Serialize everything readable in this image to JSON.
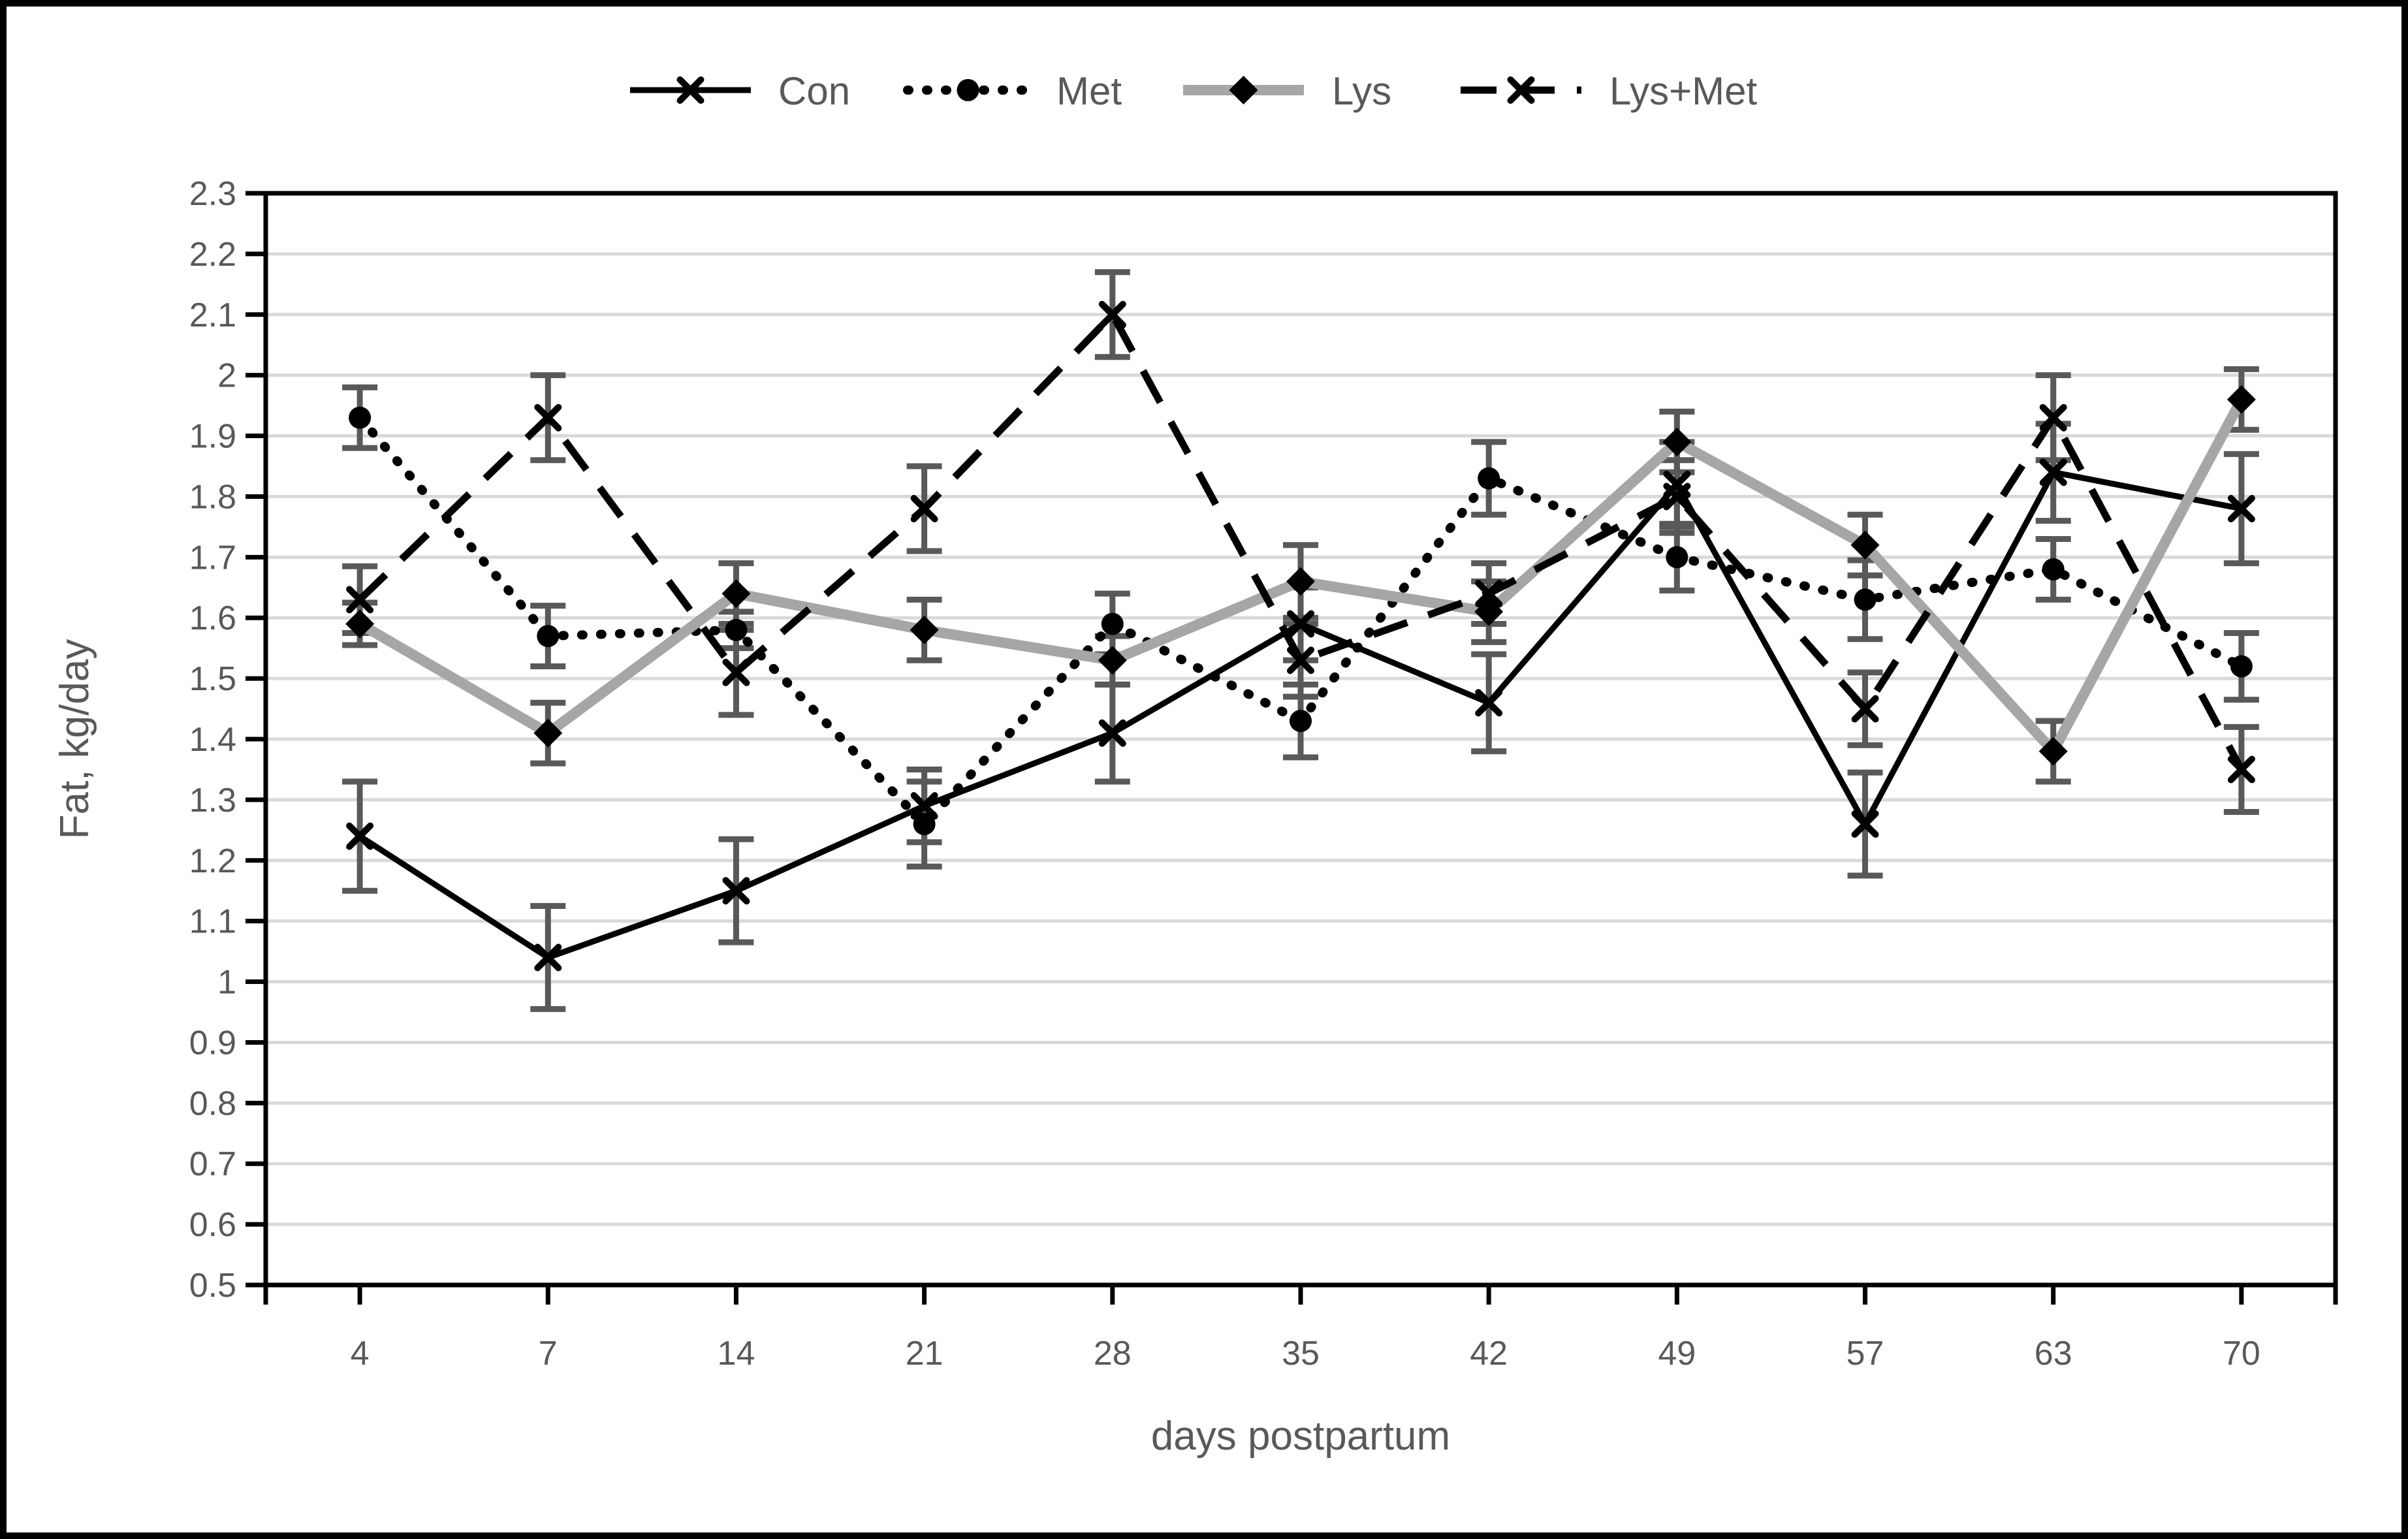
{
  "figure": {
    "background": "#ffffff",
    "outer_border_color": "#000000",
    "plot_border_color": "#000000"
  },
  "legend": {
    "position": "top-center",
    "items": [
      {
        "label": "Con",
        "swatch": "solid-black-line-x-marker"
      },
      {
        "label": "Met",
        "swatch": "dotted-black-line-circle-marker"
      },
      {
        "label": "Lys",
        "swatch": "thick-gray-line-diamond-marker"
      },
      {
        "label": "Lys+Met",
        "swatch": "dashed-black-line-x-marker"
      }
    ]
  },
  "axes": {
    "y_title": "Fat, kg/day",
    "x_title": "days postpartum",
    "y_tick_labels": [
      "2.3",
      "2.2",
      "2.1",
      "2",
      "1.9",
      "1.8",
      "1.7",
      "1.6",
      "1.5",
      "1.4",
      "1.3",
      "1.2",
      "1.1",
      "1",
      "0.9",
      "0.8",
      "0.7",
      "0.6",
      "0.5"
    ],
    "x_tick_labels": [
      "4",
      "7",
      "14",
      "21",
      "28",
      "35",
      "42",
      "49",
      "57",
      "63",
      "70"
    ]
  },
  "chart_data": {
    "type": "line",
    "title": "",
    "xlabel": "days postpartum",
    "ylabel": "Fat, kg/day",
    "categories": [
      4,
      7,
      14,
      21,
      28,
      35,
      42,
      49,
      57,
      63,
      70
    ],
    "ylim": [
      0.5,
      2.3
    ],
    "ytick_step": 0.1,
    "grid": "horizontal",
    "error_bars": true,
    "legend_position": "top",
    "series": [
      {
        "name": "Con",
        "line": "solid",
        "color": "#000000",
        "marker": "x",
        "values": [
          1.24,
          1.04,
          1.15,
          1.29,
          1.41,
          1.59,
          1.46,
          1.82,
          1.26,
          1.84,
          1.78
        ],
        "errors": [
          0.09,
          0.085,
          0.085,
          0.06,
          0.08,
          0.06,
          0.08,
          0.07,
          0.085,
          0.08,
          0.09
        ]
      },
      {
        "name": "Met",
        "line": "dotted",
        "color": "#000000",
        "marker": "circle",
        "values": [
          1.93,
          1.57,
          1.58,
          1.26,
          1.59,
          1.43,
          1.83,
          1.7,
          1.63,
          1.68,
          1.52
        ],
        "errors": [
          0.05,
          0.05,
          0.03,
          0.07,
          0.05,
          0.06,
          0.06,
          0.055,
          0.065,
          0.05,
          0.055
        ]
      },
      {
        "name": "Lys",
        "line": "solid-thick",
        "color": "#a6a6a6",
        "marker": "diamond",
        "marker_color": "#000000",
        "values": [
          1.59,
          1.41,
          1.64,
          1.58,
          1.53,
          1.66,
          1.61,
          1.89,
          1.72,
          1.38,
          1.96
        ],
        "errors": [
          0.035,
          0.05,
          0.05,
          0.05,
          0.04,
          0.06,
          0.05,
          0.05,
          0.05,
          0.05,
          0.05
        ]
      },
      {
        "name": "Lys+Met",
        "line": "dashed",
        "color": "#000000",
        "marker": "x",
        "values": [
          1.63,
          1.93,
          1.51,
          1.78,
          2.1,
          1.53,
          1.64,
          1.8,
          1.45,
          1.93,
          1.35
        ],
        "errors": [
          0.055,
          0.07,
          0.07,
          0.07,
          0.07,
          0.06,
          0.05,
          0.06,
          0.06,
          0.07,
          0.07
        ]
      }
    ],
    "colors": {
      "series_black": "#000000",
      "series_gray": "#a6a6a6",
      "error_bar": "#595959",
      "gridline": "#d9d9d9",
      "tick_text": "#595959",
      "axis_line": "#000000"
    }
  }
}
